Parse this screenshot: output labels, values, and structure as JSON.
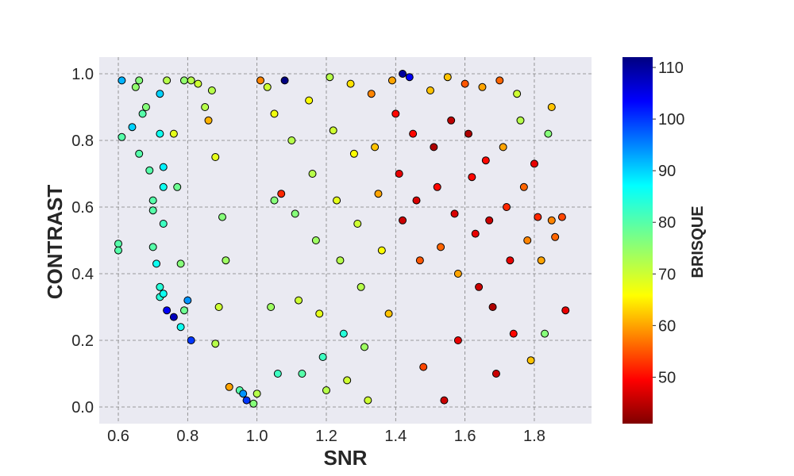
{
  "chart_data": {
    "type": "scatter",
    "title": "",
    "xlabel": "SNR",
    "ylabel": "CONTRAST",
    "xlim": [
      0.545,
      1.965
    ],
    "ylim": [
      -0.05,
      1.05
    ],
    "xticks": [
      0.6,
      0.8,
      1.0,
      1.2,
      1.4,
      1.6,
      1.8
    ],
    "xtick_labels": [
      "0.6",
      "0.8",
      "1.0",
      "1.2",
      "1.4",
      "1.6",
      "1.8"
    ],
    "yticks": [
      0.0,
      0.2,
      0.4,
      0.6,
      0.8,
      1.0
    ],
    "ytick_labels": [
      "0.0",
      "0.2",
      "0.4",
      "0.6",
      "0.8",
      "1.0"
    ],
    "grid": true,
    "colorbar": {
      "label": "BRISQUE",
      "colormap": "jet_r",
      "range": [
        41,
        112
      ],
      "ticks": [
        50,
        60,
        70,
        80,
        90,
        100,
        110
      ],
      "tick_labels": [
        "50",
        "60",
        "70",
        "80",
        "90",
        "100",
        "110"
      ]
    },
    "colors": {
      "plot_background": "#eaeaf2",
      "grid": "#808080",
      "marker_edge": "#000000"
    },
    "series": [
      {
        "color_by": "BRISQUE",
        "points": [
          [
            0.61,
            0.98,
            92
          ],
          [
            0.61,
            0.81,
            80
          ],
          [
            0.6,
            0.49,
            80
          ],
          [
            0.6,
            0.47,
            80
          ],
          [
            0.64,
            0.84,
            90
          ],
          [
            0.66,
            0.98,
            76
          ],
          [
            0.65,
            0.96,
            75
          ],
          [
            0.66,
            0.76,
            80
          ],
          [
            0.67,
            0.88,
            80
          ],
          [
            0.68,
            0.9,
            76
          ],
          [
            0.69,
            0.71,
            80
          ],
          [
            0.7,
            0.62,
            80
          ],
          [
            0.7,
            0.59,
            80
          ],
          [
            0.7,
            0.48,
            80
          ],
          [
            0.71,
            0.43,
            86
          ],
          [
            0.72,
            0.36,
            84
          ],
          [
            0.72,
            0.33,
            84
          ],
          [
            0.73,
            0.34,
            86
          ],
          [
            0.74,
            0.29,
            104
          ],
          [
            0.76,
            0.27,
            108
          ],
          [
            0.72,
            0.94,
            90
          ],
          [
            0.72,
            0.82,
            86
          ],
          [
            0.73,
            0.72,
            88
          ],
          [
            0.73,
            0.66,
            86
          ],
          [
            0.73,
            0.55,
            82
          ],
          [
            0.74,
            0.98,
            72
          ],
          [
            0.76,
            0.82,
            68
          ],
          [
            0.77,
            0.66,
            78
          ],
          [
            0.78,
            0.43,
            76
          ],
          [
            0.8,
            0.32,
            94
          ],
          [
            0.79,
            0.29,
            78
          ],
          [
            0.78,
            0.24,
            86
          ],
          [
            0.81,
            0.2,
            100
          ],
          [
            0.79,
            0.98,
            75
          ],
          [
            0.81,
            0.98,
            72
          ],
          [
            0.83,
            0.97,
            70
          ],
          [
            0.85,
            0.9,
            72
          ],
          [
            0.86,
            0.86,
            61
          ],
          [
            0.87,
            0.95,
            72
          ],
          [
            0.88,
            0.75,
            68
          ],
          [
            0.9,
            0.57,
            76
          ],
          [
            0.88,
            0.19,
            72
          ],
          [
            0.89,
            0.3,
            70
          ],
          [
            0.91,
            0.44,
            74
          ],
          [
            0.92,
            0.06,
            60
          ],
          [
            0.95,
            0.05,
            80
          ],
          [
            0.96,
            0.04,
            94
          ],
          [
            0.97,
            0.02,
            100
          ],
          [
            0.99,
            0.01,
            76
          ],
          [
            1.0,
            0.04,
            72
          ],
          [
            1.01,
            0.98,
            58
          ],
          [
            1.03,
            0.96,
            70
          ],
          [
            1.05,
            0.88,
            67
          ],
          [
            1.05,
            0.62,
            76
          ],
          [
            1.04,
            0.3,
            74
          ],
          [
            1.06,
            0.1,
            82
          ],
          [
            1.07,
            0.64,
            52
          ],
          [
            1.08,
            0.98,
            112
          ],
          [
            1.1,
            0.8,
            72
          ],
          [
            1.11,
            0.58,
            76
          ],
          [
            1.12,
            0.32,
            70
          ],
          [
            1.13,
            0.1,
            80
          ],
          [
            1.15,
            0.92,
            66
          ],
          [
            1.16,
            0.7,
            72
          ],
          [
            1.17,
            0.5,
            74
          ],
          [
            1.18,
            0.28,
            68
          ],
          [
            1.19,
            0.15,
            82
          ],
          [
            1.2,
            0.05,
            72
          ],
          [
            1.21,
            0.99,
            72
          ],
          [
            1.22,
            0.83,
            70
          ],
          [
            1.23,
            0.62,
            68
          ],
          [
            1.24,
            0.44,
            72
          ],
          [
            1.25,
            0.22,
            84
          ],
          [
            1.26,
            0.08,
            70
          ],
          [
            1.27,
            0.97,
            64
          ],
          [
            1.28,
            0.76,
            66
          ],
          [
            1.29,
            0.55,
            70
          ],
          [
            1.3,
            0.36,
            72
          ],
          [
            1.31,
            0.18,
            74
          ],
          [
            1.32,
            0.02,
            70
          ],
          [
            1.33,
            0.94,
            58
          ],
          [
            1.34,
            0.78,
            62
          ],
          [
            1.35,
            0.64,
            60
          ],
          [
            1.36,
            0.47,
            66
          ],
          [
            1.38,
            0.28,
            62
          ],
          [
            1.39,
            0.98,
            60
          ],
          [
            1.4,
            0.88,
            50
          ],
          [
            1.41,
            0.7,
            48
          ],
          [
            1.42,
            0.56,
            46
          ],
          [
            1.42,
            1.0,
            110
          ],
          [
            1.44,
            0.99,
            104
          ],
          [
            1.45,
            0.82,
            50
          ],
          [
            1.46,
            0.62,
            47
          ],
          [
            1.47,
            0.44,
            55
          ],
          [
            1.48,
            0.12,
            54
          ],
          [
            1.5,
            0.95,
            62
          ],
          [
            1.51,
            0.78,
            44
          ],
          [
            1.52,
            0.66,
            50
          ],
          [
            1.53,
            0.48,
            56
          ],
          [
            1.54,
            0.02,
            46
          ],
          [
            1.55,
            0.99,
            62
          ],
          [
            1.56,
            0.86,
            45
          ],
          [
            1.57,
            0.58,
            47
          ],
          [
            1.58,
            0.4,
            60
          ],
          [
            1.58,
            0.2,
            48
          ],
          [
            1.6,
            0.97,
            55
          ],
          [
            1.61,
            0.82,
            44
          ],
          [
            1.62,
            0.69,
            50
          ],
          [
            1.63,
            0.52,
            48
          ],
          [
            1.64,
            0.36,
            46
          ],
          [
            1.65,
            0.96,
            60
          ],
          [
            1.66,
            0.74,
            50
          ],
          [
            1.67,
            0.56,
            46
          ],
          [
            1.68,
            0.3,
            44
          ],
          [
            1.69,
            0.1,
            46
          ],
          [
            1.7,
            0.98,
            56
          ],
          [
            1.71,
            0.78,
            60
          ],
          [
            1.72,
            0.6,
            52
          ],
          [
            1.73,
            0.44,
            48
          ],
          [
            1.74,
            0.22,
            50
          ],
          [
            1.75,
            0.94,
            70
          ],
          [
            1.76,
            0.86,
            72
          ],
          [
            1.77,
            0.66,
            56
          ],
          [
            1.78,
            0.5,
            58
          ],
          [
            1.79,
            0.14,
            62
          ],
          [
            1.8,
            0.73,
            48
          ],
          [
            1.81,
            0.57,
            52
          ],
          [
            1.82,
            0.44,
            60
          ],
          [
            1.83,
            0.22,
            76
          ],
          [
            1.84,
            0.82,
            76
          ],
          [
            1.85,
            0.9,
            62
          ],
          [
            1.85,
            0.56,
            58
          ],
          [
            1.86,
            0.51,
            56
          ],
          [
            1.88,
            0.57,
            54
          ],
          [
            1.89,
            0.29,
            48
          ]
        ]
      }
    ]
  }
}
